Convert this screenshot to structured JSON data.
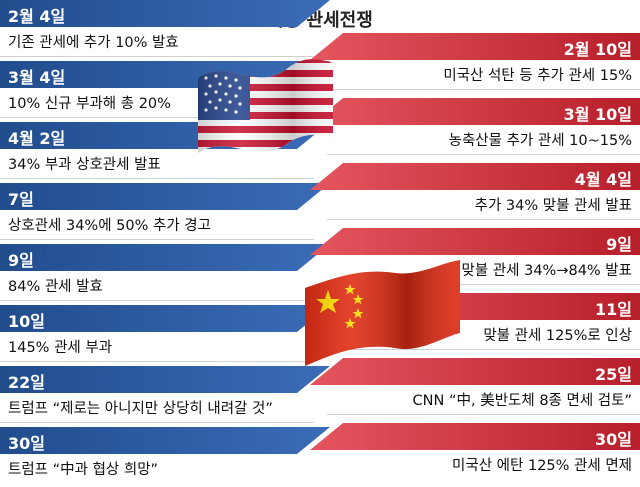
{
  "title": "미중 관세전쟁",
  "us_events": [
    {
      "date": "2월 4일",
      "text": "기존 관세에 추가 10% 발효"
    },
    {
      "date": "3월 4일",
      "text": "10% 신규 부과해 총 20%"
    },
    {
      "date": "4월 2일",
      "text": "34% 부과 상호관세 발표"
    },
    {
      "date": "7일",
      "text": "상호관세 34%에 50% 추가 경고"
    },
    {
      "date": "9일",
      "text": "84% 관세 발효"
    },
    {
      "date": "10일",
      "text": "145% 관세 부과"
    },
    {
      "date": "22일",
      "text": "트럼프 “제로는 아니지만 상당히 내려갈 것”"
    },
    {
      "date": "30일",
      "text": "트럼프 “中과 협상 희망”"
    }
  ],
  "china_events": [
    {
      "date": "2월 10일",
      "text": "미국산 석탄 등 추가 관세 15%"
    },
    {
      "date": "3월 10일",
      "text": "농축산물 추가 관세 10~15%"
    },
    {
      "date": "4월 4일",
      "text": "추가 34% 맞불 관세 발표"
    },
    {
      "date": "9일",
      "text": "맞불 관세 34%→84% 발표"
    },
    {
      "date": "11일",
      "text": "맞불 관세 125%로 인상"
    },
    {
      "date": "25일",
      "text": "CNN “中, 美반도체 8종 면세 검토”"
    },
    {
      "date": "30일",
      "text": "미국산 에탄 125% 관세 면제"
    }
  ],
  "colors": {
    "us_band": "#2c5aa0",
    "china_band": "#d3343f"
  },
  "icons": {
    "us_flag": "us-flag-icon",
    "china_flag": "china-flag-icon"
  }
}
